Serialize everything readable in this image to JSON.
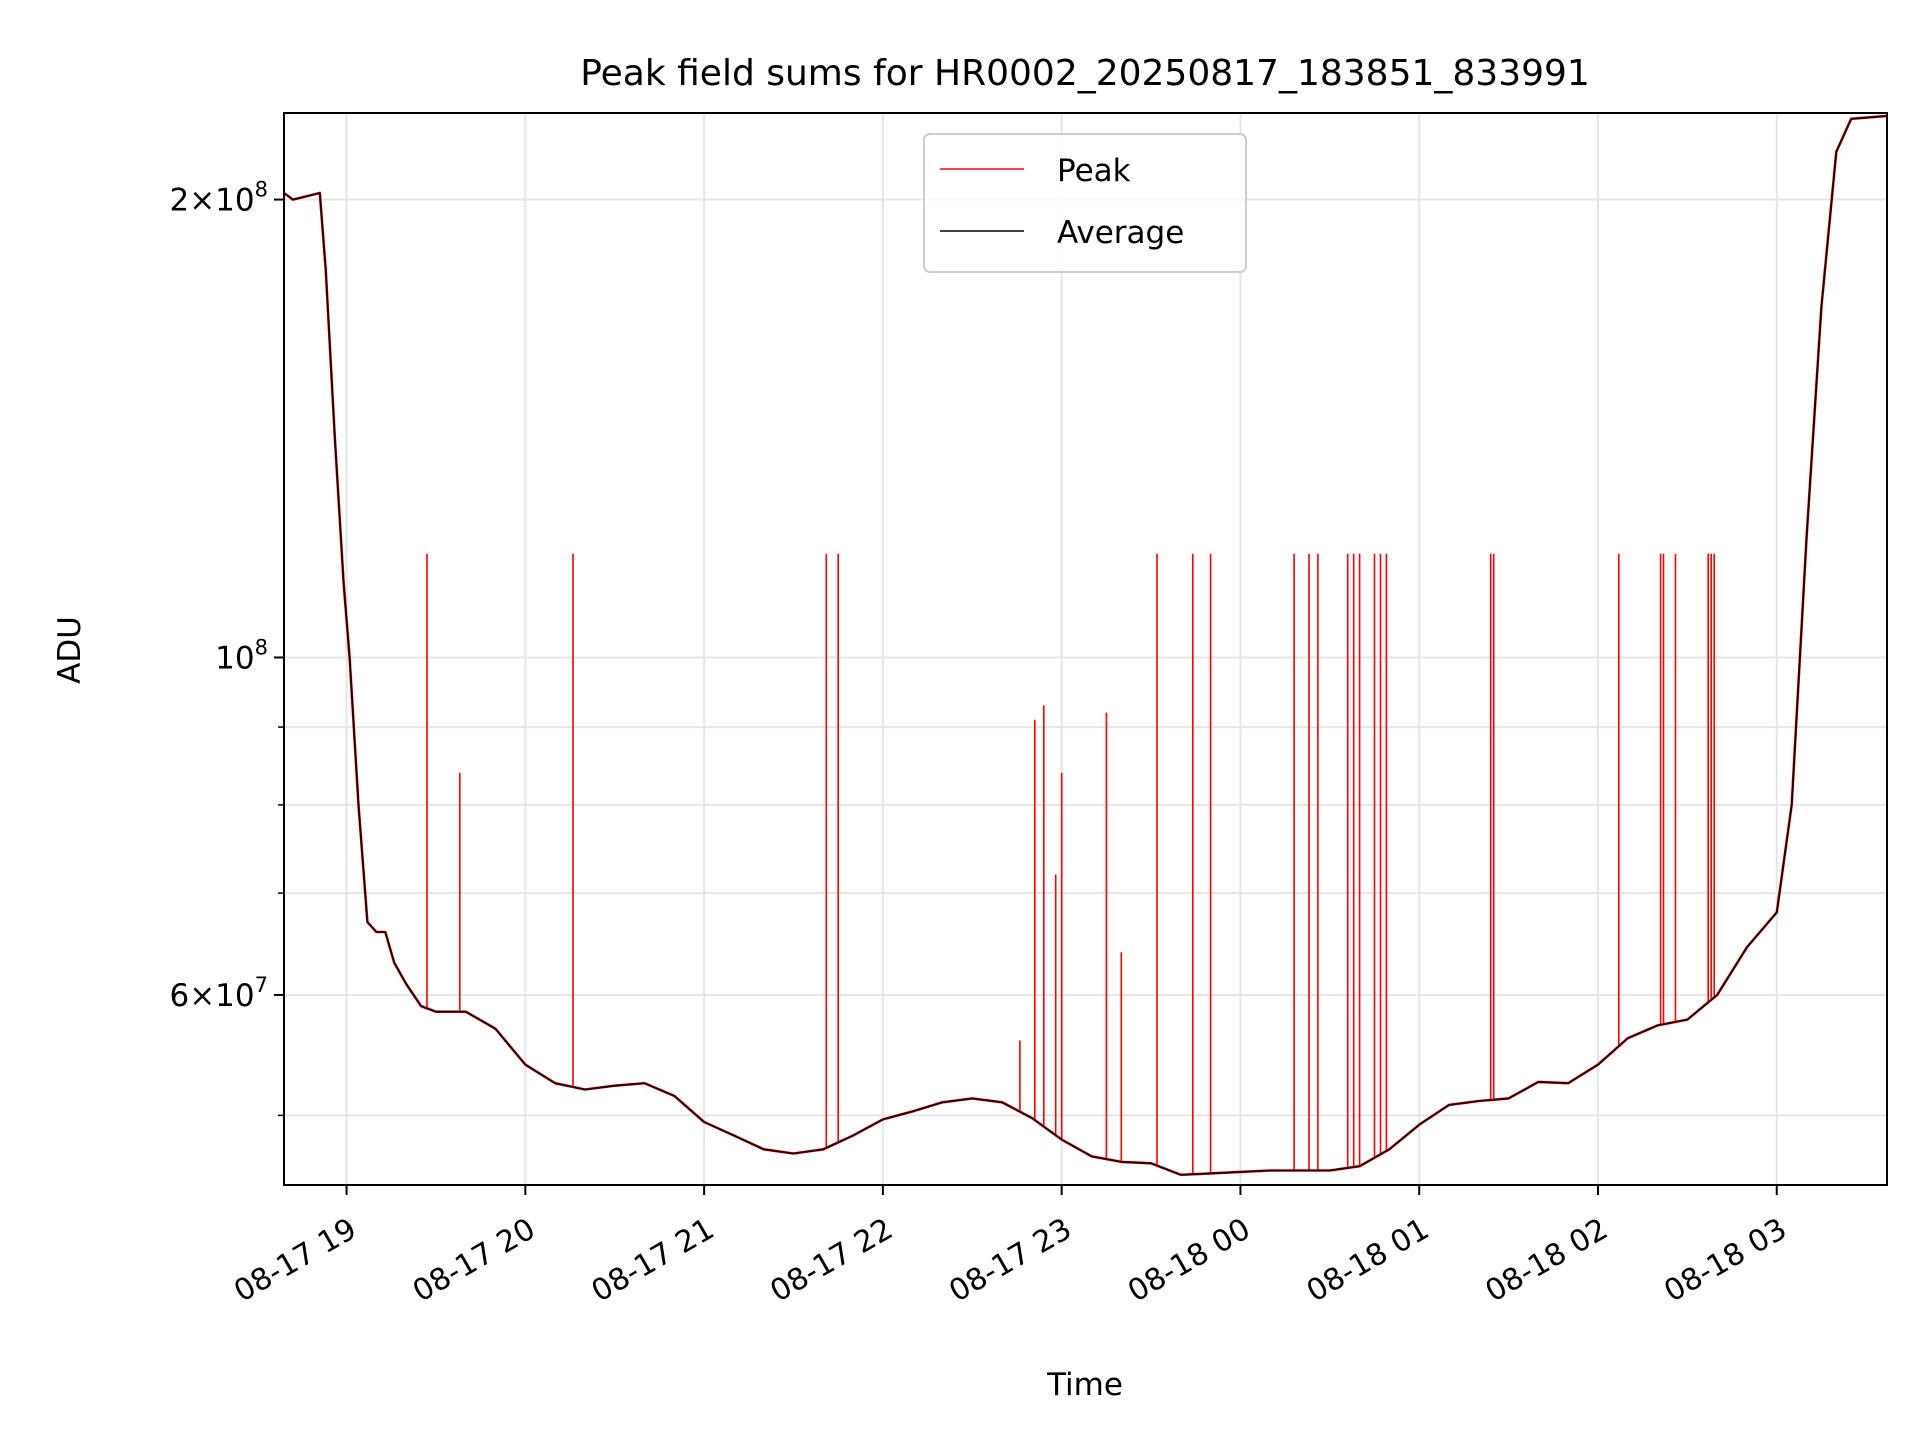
{
  "chart_data": {
    "type": "line",
    "title": "Peak field sums for HR0002_20250817_183851_833991",
    "xlabel": "Time",
    "ylabel": "ADU",
    "x_axis": "time",
    "y_scale": "log",
    "xlim": [
      "2025-08-17 18:39",
      "2025-08-18 03:37"
    ],
    "ylim": [
      45000000,
      228000000
    ],
    "xticks": [
      {
        "t": "2025-08-17 19:00",
        "label": "08-17 19"
      },
      {
        "t": "2025-08-17 20:00",
        "label": "08-17 20"
      },
      {
        "t": "2025-08-17 21:00",
        "label": "08-17 21"
      },
      {
        "t": "2025-08-17 22:00",
        "label": "08-17 22"
      },
      {
        "t": "2025-08-17 23:00",
        "label": "08-17 23"
      },
      {
        "t": "2025-08-18 00:00",
        "label": "08-18 00"
      },
      {
        "t": "2025-08-18 01:00",
        "label": "08-18 01"
      },
      {
        "t": "2025-08-18 02:00",
        "label": "08-18 02"
      },
      {
        "t": "2025-08-18 03:00",
        "label": "08-18 03"
      }
    ],
    "yticks_major": [
      {
        "v": 60000000,
        "base": "6×10",
        "exp": "7"
      },
      {
        "v": 100000000,
        "base": "10",
        "exp": "8"
      },
      {
        "v": 200000000,
        "base": "2×10",
        "exp": "8"
      }
    ],
    "yticks_minor": [
      50000000,
      70000000,
      80000000,
      90000000
    ],
    "grid": true,
    "legend_position": "upper center",
    "series": [
      {
        "name": "Peak",
        "color": "#ff0000",
        "baseline": "follows Average",
        "spikes": [
          {
            "t": "2025-08-17 19:27",
            "v": 117000000
          },
          {
            "t": "2025-08-17 19:38",
            "v": 84000000
          },
          {
            "t": "2025-08-17 20:16",
            "v": 117000000
          },
          {
            "t": "2025-08-17 21:41",
            "v": 117000000
          },
          {
            "t": "2025-08-17 21:45",
            "v": 117000000
          },
          {
            "t": "2025-08-17 22:46",
            "v": 56000000
          },
          {
            "t": "2025-08-17 22:51",
            "v": 91000000
          },
          {
            "t": "2025-08-17 22:54",
            "v": 93000000
          },
          {
            "t": "2025-08-17 22:58",
            "v": 72000000
          },
          {
            "t": "2025-08-17 23:00",
            "v": 84000000
          },
          {
            "t": "2025-08-17 23:15",
            "v": 92000000
          },
          {
            "t": "2025-08-17 23:20",
            "v": 64000000
          },
          {
            "t": "2025-08-17 23:32",
            "v": 117000000
          },
          {
            "t": "2025-08-17 23:44",
            "v": 117000000
          },
          {
            "t": "2025-08-17 23:50",
            "v": 117000000
          },
          {
            "t": "2025-08-18 00:18",
            "v": 117000000
          },
          {
            "t": "2025-08-18 00:23",
            "v": 117000000
          },
          {
            "t": "2025-08-18 00:26",
            "v": 117000000
          },
          {
            "t": "2025-08-18 00:36",
            "v": 117000000
          },
          {
            "t": "2025-08-18 00:38",
            "v": 117000000
          },
          {
            "t": "2025-08-18 00:40",
            "v": 117000000
          },
          {
            "t": "2025-08-18 00:45",
            "v": 117000000
          },
          {
            "t": "2025-08-18 00:47",
            "v": 117000000
          },
          {
            "t": "2025-08-18 00:49",
            "v": 117000000
          },
          {
            "t": "2025-08-18 01:24",
            "v": 117000000
          },
          {
            "t": "2025-08-18 01:25",
            "v": 117000000
          },
          {
            "t": "2025-08-18 02:07",
            "v": 117000000
          },
          {
            "t": "2025-08-18 02:21",
            "v": 117000000
          },
          {
            "t": "2025-08-18 02:22",
            "v": 117000000
          },
          {
            "t": "2025-08-18 02:26",
            "v": 117000000
          },
          {
            "t": "2025-08-18 02:37",
            "v": 117000000
          },
          {
            "t": "2025-08-18 02:38",
            "v": 117000000
          },
          {
            "t": "2025-08-18 02:39",
            "v": 117000000
          }
        ]
      },
      {
        "name": "Average",
        "color": "#000000",
        "points": [
          [
            "2025-08-17 18:39",
            202000000
          ],
          [
            "2025-08-17 18:42",
            200000000
          ],
          [
            "2025-08-17 18:51",
            202000000
          ],
          [
            "2025-08-17 18:53",
            180000000
          ],
          [
            "2025-08-17 18:56",
            140000000
          ],
          [
            "2025-08-17 18:59",
            112000000
          ],
          [
            "2025-08-17 19:01",
            100000000
          ],
          [
            "2025-08-17 19:04",
            80000000
          ],
          [
            "2025-08-17 19:07",
            67000000
          ],
          [
            "2025-08-17 19:10",
            66000000
          ],
          [
            "2025-08-17 19:13",
            66000000
          ],
          [
            "2025-08-17 19:16",
            63000000
          ],
          [
            "2025-08-17 19:20",
            61000000
          ],
          [
            "2025-08-17 19:25",
            59000000
          ],
          [
            "2025-08-17 19:30",
            58500000
          ],
          [
            "2025-08-17 19:40",
            58500000
          ],
          [
            "2025-08-17 19:50",
            57000000
          ],
          [
            "2025-08-17 20:00",
            54000000
          ],
          [
            "2025-08-17 20:10",
            52500000
          ],
          [
            "2025-08-17 20:20",
            52000000
          ],
          [
            "2025-08-17 20:30",
            52300000
          ],
          [
            "2025-08-17 20:40",
            52500000
          ],
          [
            "2025-08-17 20:50",
            51500000
          ],
          [
            "2025-08-17 21:00",
            49500000
          ],
          [
            "2025-08-17 21:10",
            48500000
          ],
          [
            "2025-08-17 21:20",
            47500000
          ],
          [
            "2025-08-17 21:30",
            47200000
          ],
          [
            "2025-08-17 21:40",
            47500000
          ],
          [
            "2025-08-17 21:50",
            48500000
          ],
          [
            "2025-08-17 22:00",
            49700000
          ],
          [
            "2025-08-17 22:10",
            50300000
          ],
          [
            "2025-08-17 22:20",
            51000000
          ],
          [
            "2025-08-17 22:30",
            51300000
          ],
          [
            "2025-08-17 22:40",
            51000000
          ],
          [
            "2025-08-17 22:50",
            49800000
          ],
          [
            "2025-08-17 23:00",
            48200000
          ],
          [
            "2025-08-17 23:10",
            47000000
          ],
          [
            "2025-08-17 23:20",
            46600000
          ],
          [
            "2025-08-17 23:30",
            46500000
          ],
          [
            "2025-08-17 23:40",
            45700000
          ],
          [
            "2025-08-17 23:50",
            45800000
          ],
          [
            "2025-08-18 00:00",
            45900000
          ],
          [
            "2025-08-18 00:10",
            46000000
          ],
          [
            "2025-08-18 00:20",
            46000000
          ],
          [
            "2025-08-18 00:30",
            46000000
          ],
          [
            "2025-08-18 00:40",
            46300000
          ],
          [
            "2025-08-18 00:50",
            47500000
          ],
          [
            "2025-08-18 01:00",
            49300000
          ],
          [
            "2025-08-18 01:10",
            50800000
          ],
          [
            "2025-08-18 01:20",
            51100000
          ],
          [
            "2025-08-18 01:30",
            51300000
          ],
          [
            "2025-08-18 01:40",
            52600000
          ],
          [
            "2025-08-18 01:50",
            52500000
          ],
          [
            "2025-08-18 02:00",
            54000000
          ],
          [
            "2025-08-18 02:10",
            56200000
          ],
          [
            "2025-08-18 02:20",
            57300000
          ],
          [
            "2025-08-18 02:30",
            57800000
          ],
          [
            "2025-08-18 02:40",
            60000000
          ],
          [
            "2025-08-18 02:50",
            64500000
          ],
          [
            "2025-08-18 03:00",
            68000000
          ],
          [
            "2025-08-18 03:05",
            80000000
          ],
          [
            "2025-08-18 03:10",
            120000000
          ],
          [
            "2025-08-18 03:15",
            170000000
          ],
          [
            "2025-08-18 03:20",
            215000000
          ],
          [
            "2025-08-18 03:25",
            226000000
          ],
          [
            "2025-08-18 03:37",
            227000000
          ]
        ]
      }
    ]
  }
}
